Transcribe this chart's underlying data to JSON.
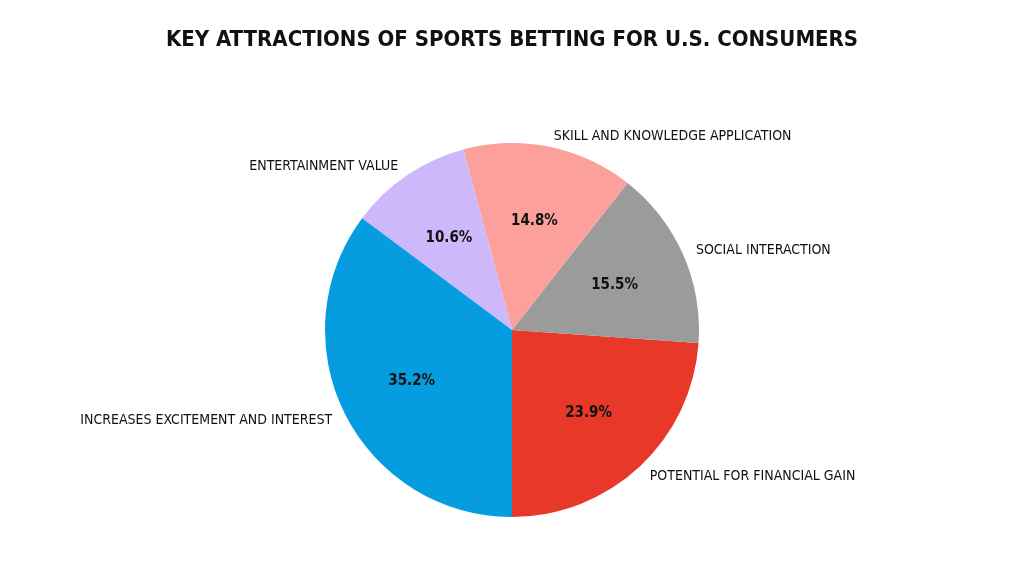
{
  "chart_data": {
    "type": "pie",
    "title": "KEY ATTRACTIONS OF SPORTS BETTING FOR U.S. CONSUMERS",
    "categories": [
      "POTENTIAL FOR FINANCIAL GAIN",
      "SOCIAL INTERACTION",
      "SKILL AND KNOWLEDGE APPLICATION",
      "ENTERTAINMENT VALUE",
      "INCREASES EXCITEMENT AND INTEREST"
    ],
    "values": [
      23.9,
      15.5,
      14.8,
      10.6,
      35.2
    ],
    "colors": [
      "#e8382a",
      "#9b9b9b",
      "#fca09c",
      "#cdb8fc",
      "#069de0"
    ],
    "value_labels": [
      "23.9%",
      "15.5%",
      "14.8%",
      "10.6%",
      "35.2%"
    ],
    "legend": false
  }
}
